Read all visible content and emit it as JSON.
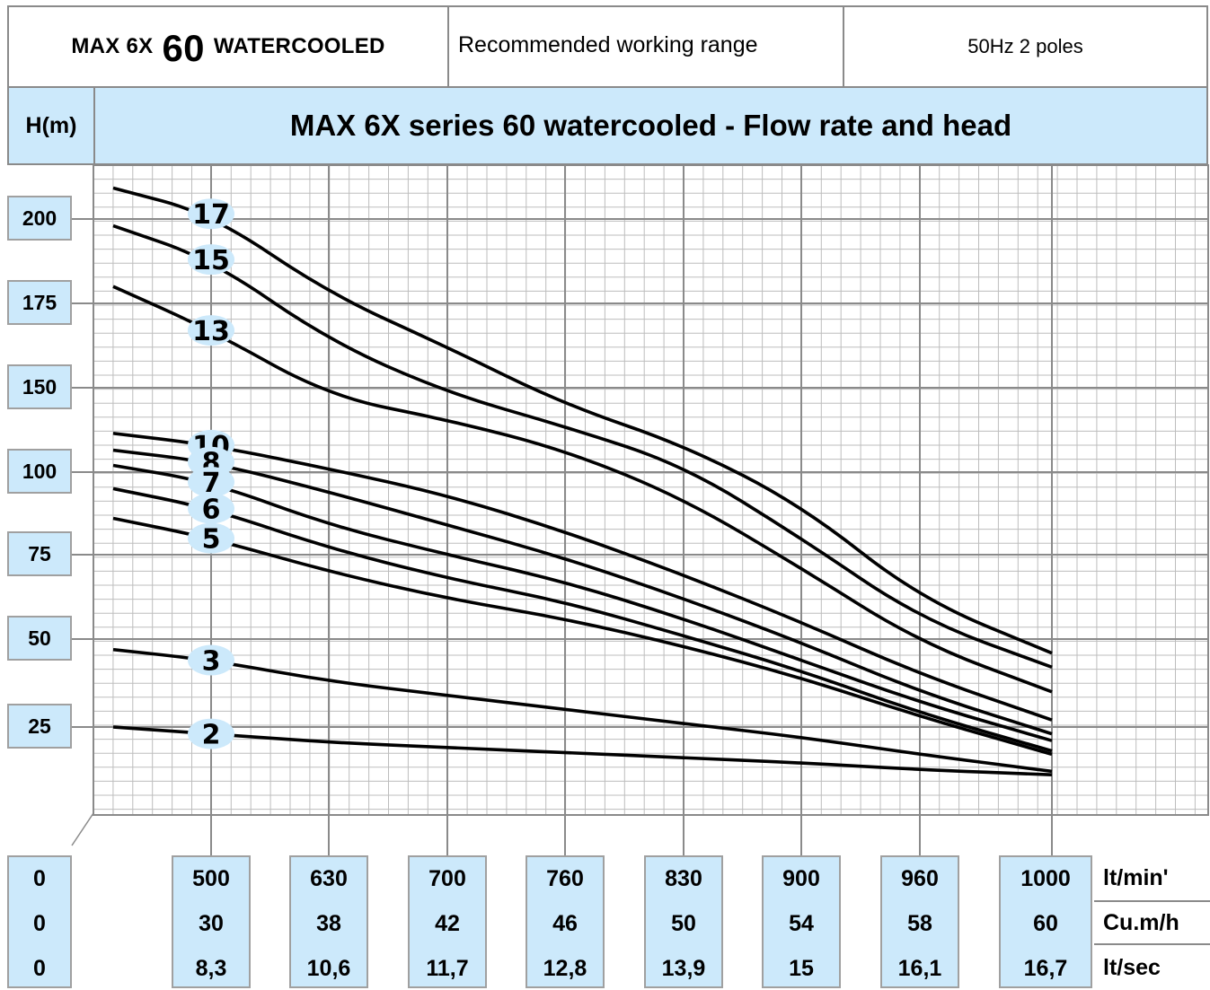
{
  "header": {
    "model_prefix": "MAX 6X",
    "model_number": "60",
    "model_suffix": "WATERCOOLED",
    "range_label": "Recommended working range",
    "frequency_label": "50Hz 2 poles"
  },
  "chart_data": {
    "type": "line",
    "title": "MAX 6X series 60 watercooled - Flow rate and head",
    "ylabel": "H(m)",
    "ylim": [
      0,
      225
    ],
    "yticks": [
      "200",
      "175",
      "150",
      "100",
      "75",
      "50",
      "25"
    ],
    "x_units": [
      "lt/min'",
      "Cu.m/h",
      "lt/sec"
    ],
    "x_zero": [
      "0",
      "0",
      "0"
    ],
    "x_columns": [
      {
        "lpm": "500",
        "m3h": "30",
        "lps": "8,3"
      },
      {
        "lpm": "630",
        "m3h": "38",
        "lps": "10,6"
      },
      {
        "lpm": "700",
        "m3h": "42",
        "lps": "11,7"
      },
      {
        "lpm": "760",
        "m3h": "46",
        "lps": "12,8"
      },
      {
        "lpm": "830",
        "m3h": "50",
        "lps": "13,9"
      },
      {
        "lpm": "900",
        "m3h": "54",
        "lps": "15"
      },
      {
        "lpm": "960",
        "m3h": "58",
        "lps": "16,1"
      },
      {
        "lpm": "1000",
        "m3h": "60",
        "lps": "16,7"
      }
    ],
    "x_values_m3h": [
      25,
      30,
      38,
      42,
      46,
      50,
      54,
      58,
      60
    ],
    "series": [
      {
        "name": "17",
        "values": [
          218,
          203,
          178,
          162,
          140,
          116,
          90,
          62,
          46
        ]
      },
      {
        "name": "15",
        "values": [
          198,
          188,
          164,
          147,
          127,
          104,
          80,
          56,
          42
        ]
      },
      {
        "name": "13",
        "values": [
          180,
          167,
          145,
          131,
          113,
          92,
          71,
          49,
          35
        ]
      },
      {
        "name": "10",
        "values": [
          123,
          116,
          102,
          93,
          82,
          69,
          55,
          40,
          27
        ]
      },
      {
        "name": "8",
        "values": [
          113,
          106,
          94,
          84,
          74,
          62,
          49,
          35,
          23
        ]
      },
      {
        "name": "7",
        "values": [
          104,
          97,
          84,
          75,
          67,
          56,
          44,
          32,
          21
        ]
      },
      {
        "name": "6",
        "values": [
          95,
          89,
          77,
          68,
          61,
          51,
          41,
          29,
          18
        ]
      },
      {
        "name": "5",
        "values": [
          86,
          80,
          70,
          62,
          56,
          48,
          39,
          28,
          17
        ]
      },
      {
        "name": "3",
        "values": [
          47,
          44,
          38,
          34,
          30,
          26,
          22,
          17,
          12
        ]
      },
      {
        "name": "2",
        "values": [
          25,
          23,
          20.5,
          19,
          17.5,
          16,
          14.5,
          12.5,
          11
        ]
      }
    ]
  }
}
